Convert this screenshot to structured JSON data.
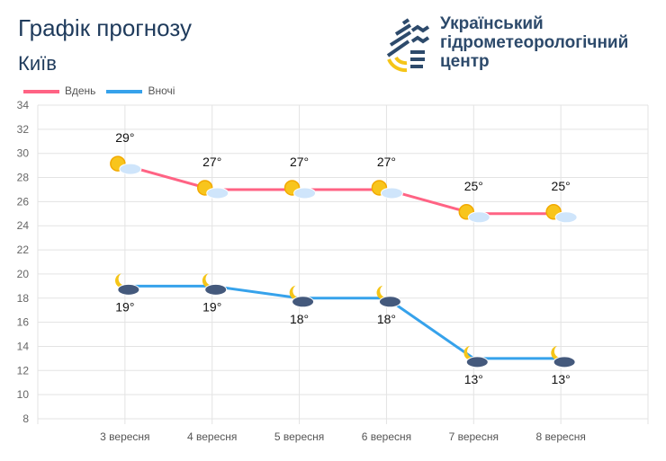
{
  "header": {
    "title": "Графік прогнозу",
    "city": "Київ"
  },
  "logo": {
    "lines": [
      "Український",
      "гідрометеорологічний",
      "центр"
    ]
  },
  "chart_data": {
    "type": "line",
    "categories": [
      "3 вересня",
      "4 вересня",
      "5 вересня",
      "6 вересня",
      "7 вересня",
      "8 вересня"
    ],
    "series": [
      {
        "name": "Вдень",
        "values": [
          29,
          27,
          27,
          27,
          25,
          25
        ],
        "labels": [
          "29°",
          "27°",
          "27°",
          "27°",
          "25°",
          "25°"
        ],
        "color": "#ff6384",
        "icon": "sun-cloud-icon"
      },
      {
        "name": "Вночі",
        "values": [
          19,
          19,
          18,
          18,
          13,
          13
        ],
        "labels": [
          "19°",
          "19°",
          "18°",
          "18°",
          "13°",
          "13°"
        ],
        "color": "#36a2eb",
        "icon": "moon-cloud-icon"
      }
    ],
    "ylim": [
      8,
      34
    ],
    "yticks": [
      8,
      10,
      12,
      14,
      16,
      18,
      20,
      22,
      24,
      26,
      28,
      30,
      32,
      34
    ],
    "grid": true,
    "legend": "top-left"
  }
}
